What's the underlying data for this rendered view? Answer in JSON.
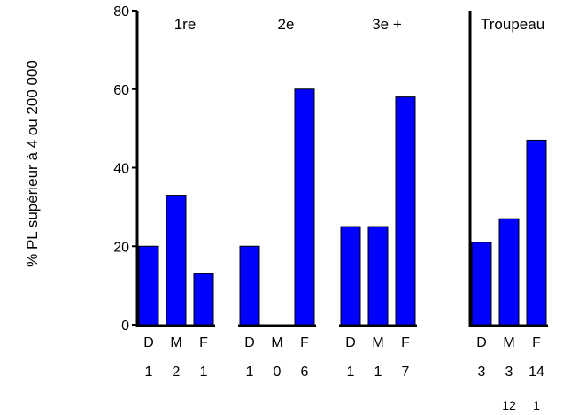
{
  "chart_data": {
    "type": "bar",
    "ylabel": "% PL supérieur à 4 ou 200 000",
    "ylim": [
      0,
      80
    ],
    "yticks": [
      "0",
      "20",
      "40",
      "60",
      "80"
    ],
    "bar_color": "#0000ff",
    "grid": false,
    "legend": "none",
    "panels": [
      {
        "groups": [
          {
            "label": "1re",
            "categories": [
              "D",
              "M",
              "F"
            ],
            "values": [
              20,
              33,
              13
            ],
            "counts": [
              "1",
              "2",
              "1"
            ]
          },
          {
            "label": "2e",
            "categories": [
              "D",
              "M",
              "F"
            ],
            "values": [
              20,
              0,
              60
            ],
            "counts": [
              "1",
              "0",
              "6"
            ]
          },
          {
            "label": "3e +",
            "categories": [
              "D",
              "M",
              "F"
            ],
            "values": [
              25,
              25,
              58
            ],
            "counts": [
              "1",
              "1",
              "7"
            ]
          }
        ]
      },
      {
        "groups": [
          {
            "label": "Troupeau",
            "categories": [
              "D",
              "M",
              "F"
            ],
            "values": [
              21,
              27,
              47
            ],
            "counts": [
              "3",
              "3",
              "14"
            ],
            "extra_counts": [
              "",
              "12",
              "1"
            ]
          }
        ]
      }
    ]
  }
}
